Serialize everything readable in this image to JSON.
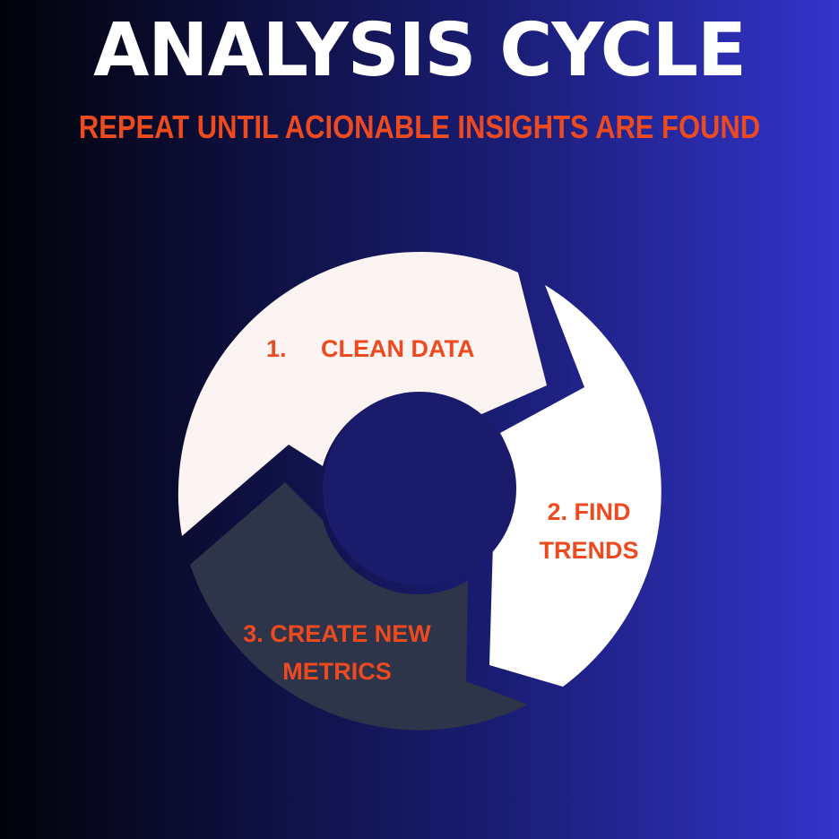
{
  "title": "ANALYSIS CYCLE",
  "subtitle": "REPEAT UNTIL ACIONABLE INSIGHTS ARE FOUND",
  "colors": {
    "accent": "#ee4a1f",
    "segment_light": "#fbf4f2",
    "segment_white": "#ffffff",
    "segment_dark": "#2e3449",
    "center": "#1a1b6a"
  },
  "steps": [
    {
      "number": "1.",
      "label": "CLEAN DATA"
    },
    {
      "lines": [
        "2. FIND",
        "TRENDS"
      ]
    },
    {
      "lines": [
        "3. CREATE NEW",
        "METRICS"
      ]
    }
  ]
}
